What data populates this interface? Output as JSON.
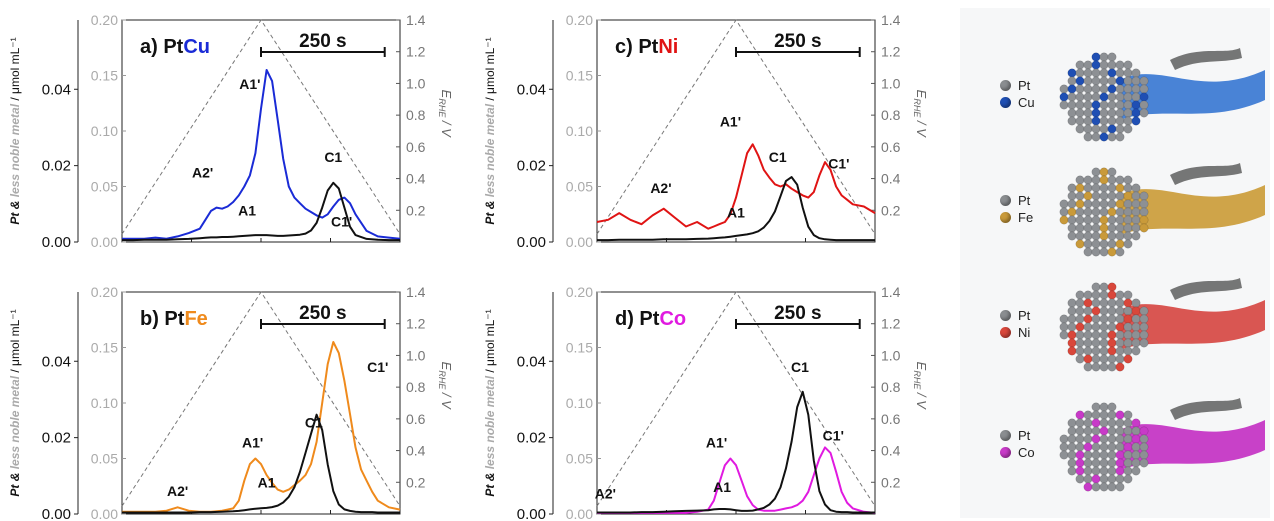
{
  "colors": {
    "Cu": "#1a2bd6",
    "Fe": "#ef8a1c",
    "Ni": "#e01414",
    "Co": "#e01ae0",
    "Pt": "#111111",
    "potential": "#777777",
    "left_axis_inner": "#aaaaaa"
  },
  "chart_data": [
    {
      "type": "line",
      "panel": "a",
      "title_prefix": "a) Pt",
      "title_metal": "Cu",
      "metal_color": "#1a2bd6",
      "scalebar_label": "250 s",
      "ylabel_left": "Pt & less noble metal / μmol mL⁻¹",
      "ylabel_right": "E_RHE / V",
      "y_left_outer_ticks": [
        "0.00",
        "0.02",
        "0.04"
      ],
      "y_left_inner_ticks": [
        "0.00",
        "0.05",
        "0.10",
        "0.15",
        "0.20"
      ],
      "y_right_ticks": [
        "0.2",
        "0.4",
        "0.6",
        "0.8",
        "1.0",
        "1.2",
        "1.4"
      ],
      "ylim_outer": [
        0,
        0.05
      ],
      "ylim_inner": [
        0,
        0.2
      ],
      "ylim_right": [
        0.05,
        1.4
      ],
      "x": [
        0,
        0.04,
        0.08,
        0.12,
        0.16,
        0.2,
        0.24,
        0.28,
        0.3,
        0.32,
        0.34,
        0.36,
        0.38,
        0.4,
        0.42,
        0.44,
        0.46,
        0.48,
        0.5,
        0.52,
        0.54,
        0.56,
        0.58,
        0.6,
        0.62,
        0.64,
        0.66,
        0.68,
        0.7,
        0.72,
        0.74,
        0.76,
        0.78,
        0.8,
        0.82,
        0.84,
        0.88,
        0.92,
        0.96,
        1
      ],
      "series": [
        {
          "name": "Cu",
          "color": "#1a2bd6",
          "axis": "inner",
          "values": [
            0.003,
            0.003,
            0.003,
            0.004,
            0.003,
            0.005,
            0.008,
            0.012,
            0.02,
            0.028,
            0.031,
            0.03,
            0.032,
            0.036,
            0.042,
            0.05,
            0.06,
            0.08,
            0.12,
            0.155,
            0.145,
            0.11,
            0.075,
            0.05,
            0.04,
            0.035,
            0.03,
            0.027,
            0.024,
            0.022,
            0.025,
            0.032,
            0.038,
            0.04,
            0.035,
            0.025,
            0.01,
            0.005,
            0.004,
            0.003
          ]
        },
        {
          "name": "Pt",
          "color": "#111111",
          "axis": "outer",
          "values": [
            0.0005,
            0.0005,
            0.0006,
            0.0006,
            0.0006,
            0.0007,
            0.0008,
            0.001,
            0.0011,
            0.0012,
            0.0012,
            0.0013,
            0.0013,
            0.0014,
            0.0015,
            0.0016,
            0.0017,
            0.0018,
            0.0018,
            0.0018,
            0.0017,
            0.0016,
            0.0016,
            0.0017,
            0.0018,
            0.0019,
            0.0022,
            0.003,
            0.005,
            0.009,
            0.0135,
            0.0155,
            0.014,
            0.009,
            0.004,
            0.0018,
            0.0008,
            0.0006,
            0.0005,
            0.0005
          ]
        }
      ],
      "potential": {
        "x": [
          0,
          0.5,
          1
        ],
        "values": [
          0.05,
          1.4,
          0.05
        ]
      },
      "annotations": [
        {
          "text": "A1'",
          "x": 0.46,
          "y_frac": 0.69
        },
        {
          "text": "A2'",
          "x": 0.29,
          "y_frac": 0.29
        },
        {
          "text": "A1",
          "x": 0.45,
          "y_frac": 0.12
        },
        {
          "text": "C1",
          "x": 0.76,
          "y_frac": 0.36
        },
        {
          "text": "C1'",
          "x": 0.79,
          "y_frac": 0.07
        }
      ]
    },
    {
      "type": "line",
      "panel": "b",
      "title_prefix": "b) Pt",
      "title_metal": "Fe",
      "metal_color": "#ef8a1c",
      "scalebar_label": "250 s",
      "ylabel_left": "Pt & less noble metal / μmol mL⁻¹",
      "ylabel_right": "E_RHE / V",
      "y_left_outer_ticks": [
        "0.00",
        "0.02",
        "0.04"
      ],
      "y_left_inner_ticks": [
        "0.00",
        "0.05",
        "0.10",
        "0.15",
        "0.20"
      ],
      "y_right_ticks": [
        "0.2",
        "0.4",
        "0.6",
        "0.8",
        "1.0",
        "1.2",
        "1.4"
      ],
      "ylim_outer": [
        0,
        0.05
      ],
      "ylim_inner": [
        0,
        0.2
      ],
      "ylim_right": [
        0.05,
        1.4
      ],
      "x": [
        0,
        0.04,
        0.08,
        0.12,
        0.16,
        0.2,
        0.24,
        0.28,
        0.32,
        0.36,
        0.4,
        0.42,
        0.44,
        0.46,
        0.48,
        0.5,
        0.52,
        0.54,
        0.56,
        0.58,
        0.6,
        0.62,
        0.64,
        0.66,
        0.68,
        0.7,
        0.72,
        0.74,
        0.76,
        0.78,
        0.8,
        0.82,
        0.84,
        0.86,
        0.88,
        0.9,
        0.92,
        0.96,
        1
      ],
      "series": [
        {
          "name": "Fe",
          "color": "#ef8a1c",
          "axis": "inner",
          "values": [
            0.002,
            0.002,
            0.002,
            0.002,
            0.003,
            0.006,
            0.003,
            0.002,
            0.002,
            0.003,
            0.005,
            0.012,
            0.03,
            0.045,
            0.05,
            0.045,
            0.035,
            0.028,
            0.022,
            0.02,
            0.022,
            0.026,
            0.03,
            0.035,
            0.045,
            0.065,
            0.1,
            0.135,
            0.155,
            0.145,
            0.12,
            0.09,
            0.06,
            0.04,
            0.03,
            0.02,
            0.012,
            0.006,
            0.004
          ]
        },
        {
          "name": "Pt",
          "color": "#111111",
          "axis": "outer",
          "values": [
            0.0004,
            0.0004,
            0.0004,
            0.0004,
            0.0004,
            0.0004,
            0.0004,
            0.0005,
            0.0005,
            0.0006,
            0.0007,
            0.0008,
            0.001,
            0.0012,
            0.0014,
            0.0015,
            0.0016,
            0.0018,
            0.0022,
            0.003,
            0.0045,
            0.007,
            0.011,
            0.016,
            0.021,
            0.026,
            0.022,
            0.013,
            0.006,
            0.0025,
            0.0012,
            0.0008,
            0.0006,
            0.0005,
            0.0005,
            0.0005,
            0.0004,
            0.0004,
            0.0004
          ]
        }
      ],
      "potential": {
        "x": [
          0,
          0.5,
          1
        ],
        "values": [
          0.05,
          1.4,
          0.05
        ]
      },
      "annotations": [
        {
          "text": "A1'",
          "x": 0.47,
          "y_frac": 0.3
        },
        {
          "text": "A2'",
          "x": 0.2,
          "y_frac": 0.08
        },
        {
          "text": "A1",
          "x": 0.52,
          "y_frac": 0.12
        },
        {
          "text": "C1",
          "x": 0.69,
          "y_frac": 0.39
        },
        {
          "text": "C1'",
          "x": 0.92,
          "y_frac": 0.64
        }
      ]
    },
    {
      "type": "line",
      "panel": "c",
      "title_prefix": "c) Pt",
      "title_metal": "Ni",
      "metal_color": "#e01414",
      "scalebar_label": "250 s",
      "ylabel_left": "Pt & less noble metal / μmol mL⁻¹",
      "ylabel_right": "E_RHE / V",
      "y_left_outer_ticks": [
        "0.00",
        "0.02",
        "0.04"
      ],
      "y_left_inner_ticks": [
        "0.00",
        "0.05",
        "0.10",
        "0.15",
        "0.20"
      ],
      "y_right_ticks": [
        "0.2",
        "0.4",
        "0.6",
        "0.8",
        "1.0",
        "1.2",
        "1.4"
      ],
      "ylim_outer": [
        0,
        0.05
      ],
      "ylim_inner": [
        0,
        0.2
      ],
      "ylim_right": [
        0.05,
        1.4
      ],
      "x": [
        0,
        0.04,
        0.08,
        0.12,
        0.16,
        0.2,
        0.24,
        0.28,
        0.32,
        0.36,
        0.4,
        0.42,
        0.44,
        0.46,
        0.48,
        0.5,
        0.52,
        0.54,
        0.56,
        0.58,
        0.6,
        0.62,
        0.64,
        0.66,
        0.68,
        0.7,
        0.72,
        0.74,
        0.76,
        0.78,
        0.8,
        0.82,
        0.84,
        0.86,
        0.88,
        0.9,
        0.92,
        0.96,
        1
      ],
      "series": [
        {
          "name": "Ni",
          "color": "#e01414",
          "axis": "inner",
          "values": [
            0.018,
            0.02,
            0.026,
            0.02,
            0.016,
            0.024,
            0.03,
            0.022,
            0.014,
            0.018,
            0.012,
            0.014,
            0.016,
            0.018,
            0.025,
            0.04,
            0.06,
            0.08,
            0.088,
            0.078,
            0.065,
            0.058,
            0.052,
            0.05,
            0.052,
            0.048,
            0.045,
            0.042,
            0.04,
            0.045,
            0.06,
            0.072,
            0.065,
            0.05,
            0.042,
            0.038,
            0.034,
            0.032,
            0.026
          ]
        },
        {
          "name": "Pt",
          "color": "#111111",
          "axis": "outer",
          "values": [
            0.0005,
            0.0005,
            0.0006,
            0.0006,
            0.0006,
            0.0006,
            0.0007,
            0.0007,
            0.0007,
            0.0008,
            0.0009,
            0.001,
            0.0011,
            0.0012,
            0.0014,
            0.0016,
            0.0018,
            0.002,
            0.0023,
            0.0028,
            0.0038,
            0.0055,
            0.008,
            0.012,
            0.016,
            0.017,
            0.015,
            0.009,
            0.004,
            0.0018,
            0.001,
            0.0007,
            0.0006,
            0.0005,
            0.0005,
            0.0005,
            0.0005,
            0.0005,
            0.0005
          ]
        }
      ],
      "potential": {
        "x": [
          0,
          0.5,
          1
        ],
        "values": [
          0.05,
          1.4,
          0.05
        ]
      },
      "annotations": [
        {
          "text": "A1'",
          "x": 0.48,
          "y_frac": 0.52
        },
        {
          "text": "A2'",
          "x": 0.23,
          "y_frac": 0.22
        },
        {
          "text": "A1",
          "x": 0.5,
          "y_frac": 0.11
        },
        {
          "text": "C1",
          "x": 0.65,
          "y_frac": 0.36
        },
        {
          "text": "C1'",
          "x": 0.87,
          "y_frac": 0.33
        }
      ]
    },
    {
      "type": "line",
      "panel": "d",
      "title_prefix": "d) Pt",
      "title_metal": "Co",
      "metal_color": "#e01ae0",
      "scalebar_label": "250 s",
      "ylabel_left": "Pt & less noble metal / μmol mL⁻¹",
      "ylabel_right": "E_RHE / V",
      "y_left_outer_ticks": [
        "0.00",
        "0.02",
        "0.04"
      ],
      "y_left_inner_ticks": [
        "0.00",
        "0.05",
        "0.10",
        "0.15",
        "0.20"
      ],
      "y_right_ticks": [
        "0.2",
        "0.4",
        "0.6",
        "0.8",
        "1.0",
        "1.2",
        "1.4"
      ],
      "ylim_outer": [
        0,
        0.05
      ],
      "ylim_inner": [
        0,
        0.2
      ],
      "ylim_right": [
        0.05,
        1.4
      ],
      "x": [
        0,
        0.04,
        0.08,
        0.12,
        0.16,
        0.2,
        0.24,
        0.28,
        0.32,
        0.36,
        0.4,
        0.42,
        0.44,
        0.46,
        0.48,
        0.5,
        0.52,
        0.54,
        0.56,
        0.58,
        0.6,
        0.62,
        0.64,
        0.66,
        0.68,
        0.7,
        0.72,
        0.74,
        0.76,
        0.78,
        0.8,
        0.82,
        0.84,
        0.86,
        0.88,
        0.9,
        0.92,
        0.96,
        1
      ],
      "series": [
        {
          "name": "Co",
          "color": "#e01ae0",
          "axis": "inner",
          "values": [
            0.001,
            0.001,
            0.001,
            0.001,
            0.001,
            0.001,
            0.001,
            0.001,
            0.001,
            0.002,
            0.004,
            0.012,
            0.028,
            0.044,
            0.05,
            0.044,
            0.03,
            0.016,
            0.008,
            0.004,
            0.003,
            0.003,
            0.003,
            0.004,
            0.005,
            0.006,
            0.008,
            0.012,
            0.02,
            0.035,
            0.05,
            0.06,
            0.055,
            0.038,
            0.02,
            0.01,
            0.005,
            0.002,
            0.001
          ]
        },
        {
          "name": "Pt",
          "color": "#111111",
          "axis": "outer",
          "values": [
            0.0004,
            0.0004,
            0.0004,
            0.0004,
            0.0005,
            0.0005,
            0.0006,
            0.0007,
            0.0008,
            0.0009,
            0.001,
            0.0012,
            0.0013,
            0.0013,
            0.0012,
            0.001,
            0.0008,
            0.0008,
            0.0009,
            0.0012,
            0.0016,
            0.0025,
            0.004,
            0.007,
            0.012,
            0.019,
            0.028,
            0.032,
            0.026,
            0.014,
            0.006,
            0.0025,
            0.001,
            0.0006,
            0.0005,
            0.0005,
            0.0004,
            0.0004,
            0.0004
          ]
        }
      ],
      "potential": {
        "x": [
          0,
          0.5,
          1
        ],
        "values": [
          0.05,
          1.4,
          0.05
        ]
      },
      "annotations": [
        {
          "text": "A1'",
          "x": 0.43,
          "y_frac": 0.3
        },
        {
          "text": "A2'",
          "x": 0.03,
          "y_frac": 0.07
        },
        {
          "text": "A1",
          "x": 0.45,
          "y_frac": 0.1
        },
        {
          "text": "C1",
          "x": 0.73,
          "y_frac": 0.64
        },
        {
          "text": "C1'",
          "x": 0.85,
          "y_frac": 0.33
        }
      ]
    }
  ],
  "side_legend": [
    {
      "pt": "Pt",
      "metal": "Cu",
      "metal_color": "#1f4fb4",
      "stream_color": "#2a6fd0"
    },
    {
      "pt": "Pt",
      "metal": "Fe",
      "metal_color": "#c99a3a",
      "stream_color": "#c8952a"
    },
    {
      "pt": "Pt",
      "metal": "Ni",
      "metal_color": "#d9473b",
      "stream_color": "#d33a35"
    },
    {
      "pt": "Pt",
      "metal": "Co",
      "metal_color": "#c83ac8",
      "stream_color": "#c021c0"
    }
  ]
}
